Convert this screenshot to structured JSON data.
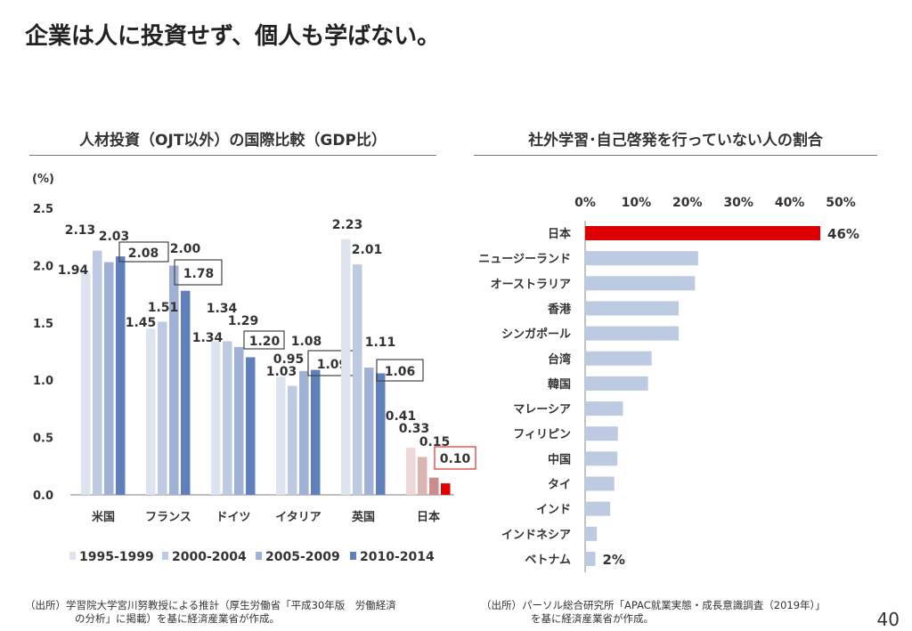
{
  "title": "企業は人に投資せず、個人も学ばない。",
  "page_number": "40",
  "left": {
    "heading": "人材投資（OJT以外）の国際比較（GDP比）",
    "source_line1": "（出所）学習院大学宮川努教授による推計（厚生労働省「平成30年版　労働経済",
    "source_line2": "の分析」に掲載）を基に経済産業省が作成。"
  },
  "right": {
    "heading": "社外学習･自己啓発を行っていない人の割合",
    "source_line1": "（出所）パーソル総合研究所「APAC就業実態・成長意識調査（2019年）」",
    "source_line2": "を基に経済産業省が作成。"
  },
  "chart_data": [
    {
      "type": "bar",
      "ylabel": "(%)",
      "ylim": [
        0,
        2.5
      ],
      "yticks": [
        "0.0",
        "0.5",
        "1.0",
        "1.5",
        "2.0",
        "2.5"
      ],
      "categories": [
        "米国",
        "フランス",
        "ドイツ",
        "イタリア",
        "英国",
        "日本"
      ],
      "legend_position": "bottom",
      "grid": false,
      "series": [
        {
          "name": "1995-1999",
          "values": [
            1.94,
            1.45,
            1.34,
            1.03,
            2.23,
            0.41
          ],
          "color": "#dde3ef"
        },
        {
          "name": "2000-2004",
          "values": [
            2.13,
            1.51,
            1.34,
            0.95,
            2.01,
            0.33
          ],
          "color": "#bccbe2"
        },
        {
          "name": "2005-2009",
          "values": [
            2.03,
            2.0,
            1.29,
            1.08,
            1.11,
            0.15
          ],
          "color": "#9fb2d6"
        },
        {
          "name": "2010-2014",
          "values": [
            2.08,
            1.78,
            1.2,
            1.09,
            1.06,
            0.1
          ],
          "color": "#6080bb"
        }
      ],
      "highlight_category": "日本",
      "highlight_colors": [
        "#ecd6d6",
        "#dbb3b1",
        "#c98d8b",
        "#e00000"
      ],
      "labels": [
        [
          "1.94",
          "1.45",
          "1.34",
          "1.03",
          "2.23",
          "0.41"
        ],
        [
          "2.13",
          "1.51",
          "1.34",
          "0.95",
          "2.01",
          "0.33"
        ],
        [
          "2.03",
          "2.00",
          "1.29",
          "1.08",
          "1.11",
          "0.15"
        ],
        [
          "2.08",
          "1.78",
          "1.20",
          "1.09",
          "1.06",
          "0.10"
        ]
      ]
    },
    {
      "type": "bar",
      "orientation": "horizontal",
      "xlim": [
        0,
        50
      ],
      "xticks": [
        "0%",
        "10%",
        "20%",
        "30%",
        "40%",
        "50%"
      ],
      "xaxis_position": "top",
      "grid": false,
      "categories": [
        "日本",
        "ニュージーランド",
        "オーストラリア",
        "香港",
        "シンガポール",
        "台湾",
        "韓国",
        "マレーシア",
        "フィリピン",
        "中国",
        "タイ",
        "インド",
        "インドネシア",
        "ベトナム"
      ],
      "values": [
        46,
        22.1,
        21.5,
        18.3,
        18.3,
        13.0,
        12.3,
        7.4,
        6.4,
        6.3,
        5.7,
        4.9,
        2.3,
        2
      ],
      "data_labels": {
        "日本": "46%",
        "ベトナム": "2%"
      },
      "colors": {
        "highlight": "#dd0000",
        "default": "#bccbe2"
      }
    }
  ]
}
